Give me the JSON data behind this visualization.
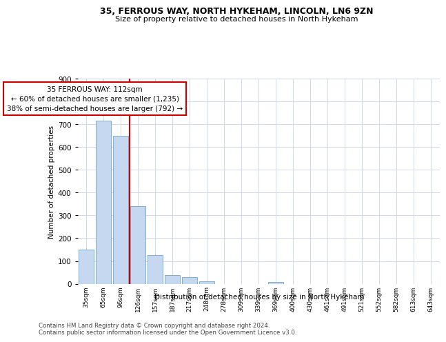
{
  "title1": "35, FERROUS WAY, NORTH HYKEHAM, LINCOLN, LN6 9ZN",
  "title2": "Size of property relative to detached houses in North Hykeham",
  "xlabel": "Distribution of detached houses by size in North Hykeham",
  "ylabel": "Number of detached properties",
  "categories": [
    "35sqm",
    "65sqm",
    "96sqm",
    "126sqm",
    "157sqm",
    "187sqm",
    "217sqm",
    "248sqm",
    "278sqm",
    "309sqm",
    "339sqm",
    "369sqm",
    "400sqm",
    "430sqm",
    "461sqm",
    "491sqm",
    "521sqm",
    "552sqm",
    "582sqm",
    "613sqm",
    "643sqm"
  ],
  "values": [
    150,
    715,
    650,
    340,
    125,
    38,
    28,
    10,
    0,
    0,
    0,
    8,
    0,
    0,
    0,
    0,
    0,
    0,
    0,
    0,
    0
  ],
  "bar_color": "#c5d8f0",
  "bar_edge_color": "#7bafd4",
  "vline_x": 2.5,
  "vline_color": "#cc0000",
  "annotation_line1": "35 FERROUS WAY: 112sqm",
  "annotation_line2": "← 60% of detached houses are smaller (1,235)",
  "annotation_line3": "38% of semi-detached houses are larger (792) →",
  "annotation_box_color": "white",
  "annotation_box_edgecolor": "#cc0000",
  "ylim": [
    0,
    900
  ],
  "yticks": [
    0,
    100,
    200,
    300,
    400,
    500,
    600,
    700,
    800,
    900
  ],
  "footer": "Contains HM Land Registry data © Crown copyright and database right 2024.\nContains public sector information licensed under the Open Government Licence v3.0.",
  "bg_color": "white",
  "grid_color": "#d0d8e8"
}
